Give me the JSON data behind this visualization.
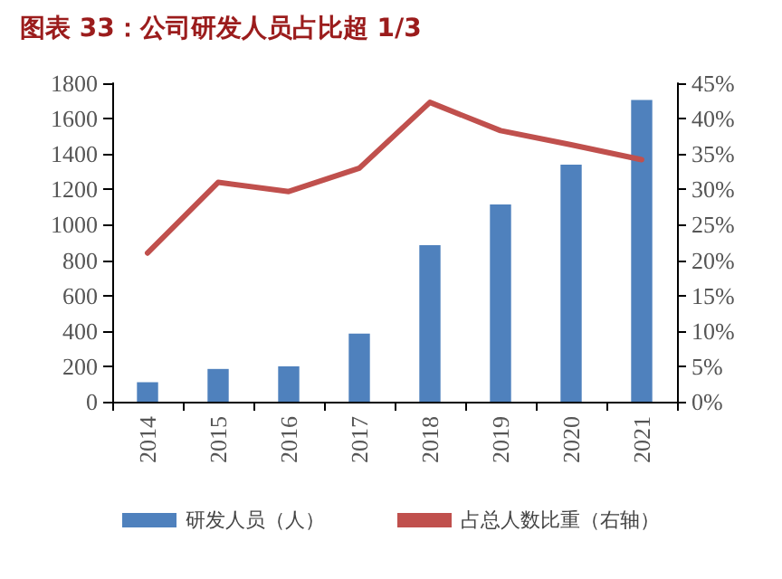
{
  "chart_data": {
    "type": "bar",
    "title": "图表 33：公司研发人员占比超 1/3",
    "categories": [
      "2014",
      "2015",
      "2016",
      "2017",
      "2018",
      "2019",
      "2020",
      "2021"
    ],
    "series": [
      {
        "name": "研发人员（人）",
        "color": "#4f81bd",
        "values": [
          110,
          185,
          200,
          385,
          885,
          1115,
          1340,
          1705
        ]
      },
      {
        "name": "占总人数比重（右轴）",
        "type": "line",
        "axis": "y2",
        "color": "#c0504d",
        "marker": "none",
        "values": [
          21,
          31,
          29.7,
          33,
          42.3,
          38.3,
          36.3,
          34.2
        ]
      }
    ],
    "ylim": [
      0,
      1800
    ],
    "yticks": [
      0,
      200,
      400,
      600,
      800,
      1000,
      1200,
      1400,
      1600,
      1800
    ],
    "y2lim": [
      0,
      45
    ],
    "y2ticks": [
      {
        "value": 0,
        "label": "0%"
      },
      {
        "value": 5,
        "label": "5%"
      },
      {
        "value": 10,
        "label": "10%"
      },
      {
        "value": 15,
        "label": "15%"
      },
      {
        "value": 20,
        "label": "20%"
      },
      {
        "value": 25,
        "label": "25%"
      },
      {
        "value": 30,
        "label": "30%"
      },
      {
        "value": 35,
        "label": "35%"
      },
      {
        "value": 40,
        "label": "40%"
      },
      {
        "value": 45,
        "label": "45%"
      }
    ],
    "grid": false,
    "legend": "bottom"
  }
}
